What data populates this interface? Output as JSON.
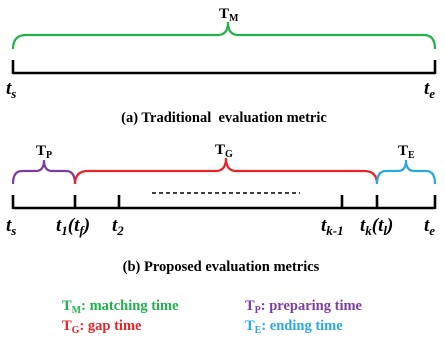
{
  "colors": {
    "matching": "#22b24c",
    "preparing": "#7b3f9e",
    "gap": "#e8232a",
    "ending": "#29a9df",
    "axis": "#000000"
  },
  "panel_a": {
    "brace_label_main": "T",
    "brace_label_sub": "M",
    "tick_start_main": "t",
    "tick_start_sub": "s",
    "tick_end_main": "t",
    "tick_end_sub": "e",
    "caption": "(a) Traditional  evaluation metric"
  },
  "panel_b": {
    "brace_p_main": "T",
    "brace_p_sub": "P",
    "brace_g_main": "T",
    "brace_g_sub": "G",
    "brace_e_main": "T",
    "brace_e_sub": "E",
    "ticks": {
      "ts_main": "t",
      "ts_sub": "s",
      "t1_main": "t",
      "t1_sub": "1",
      "t1_paren": "(t",
      "t1_paren_sub": "f",
      "t1_close": ")",
      "t2_main": "t",
      "t2_sub": "2",
      "tk1_main": "t",
      "tk1_sub": "k-1",
      "tk_main": "t",
      "tk_sub": "k",
      "tk_paren": "(t",
      "tk_paren_sub": "l",
      "tk_close": ")",
      "te_main": "t",
      "te_sub": "e"
    },
    "dots": "-------------------",
    "caption": "(b) Proposed evaluation metrics"
  },
  "legend": {
    "tm_main": "T",
    "tm_sub": "M",
    "tm_text": ": matching time",
    "tp_main": "T",
    "tp_sub": "P",
    "tp_text": ": preparing time",
    "tg_main": "T",
    "tg_sub": "G",
    "tg_text": ": gap time",
    "te_main": "T",
    "te_sub": "E",
    "te_text": ": ending time"
  }
}
